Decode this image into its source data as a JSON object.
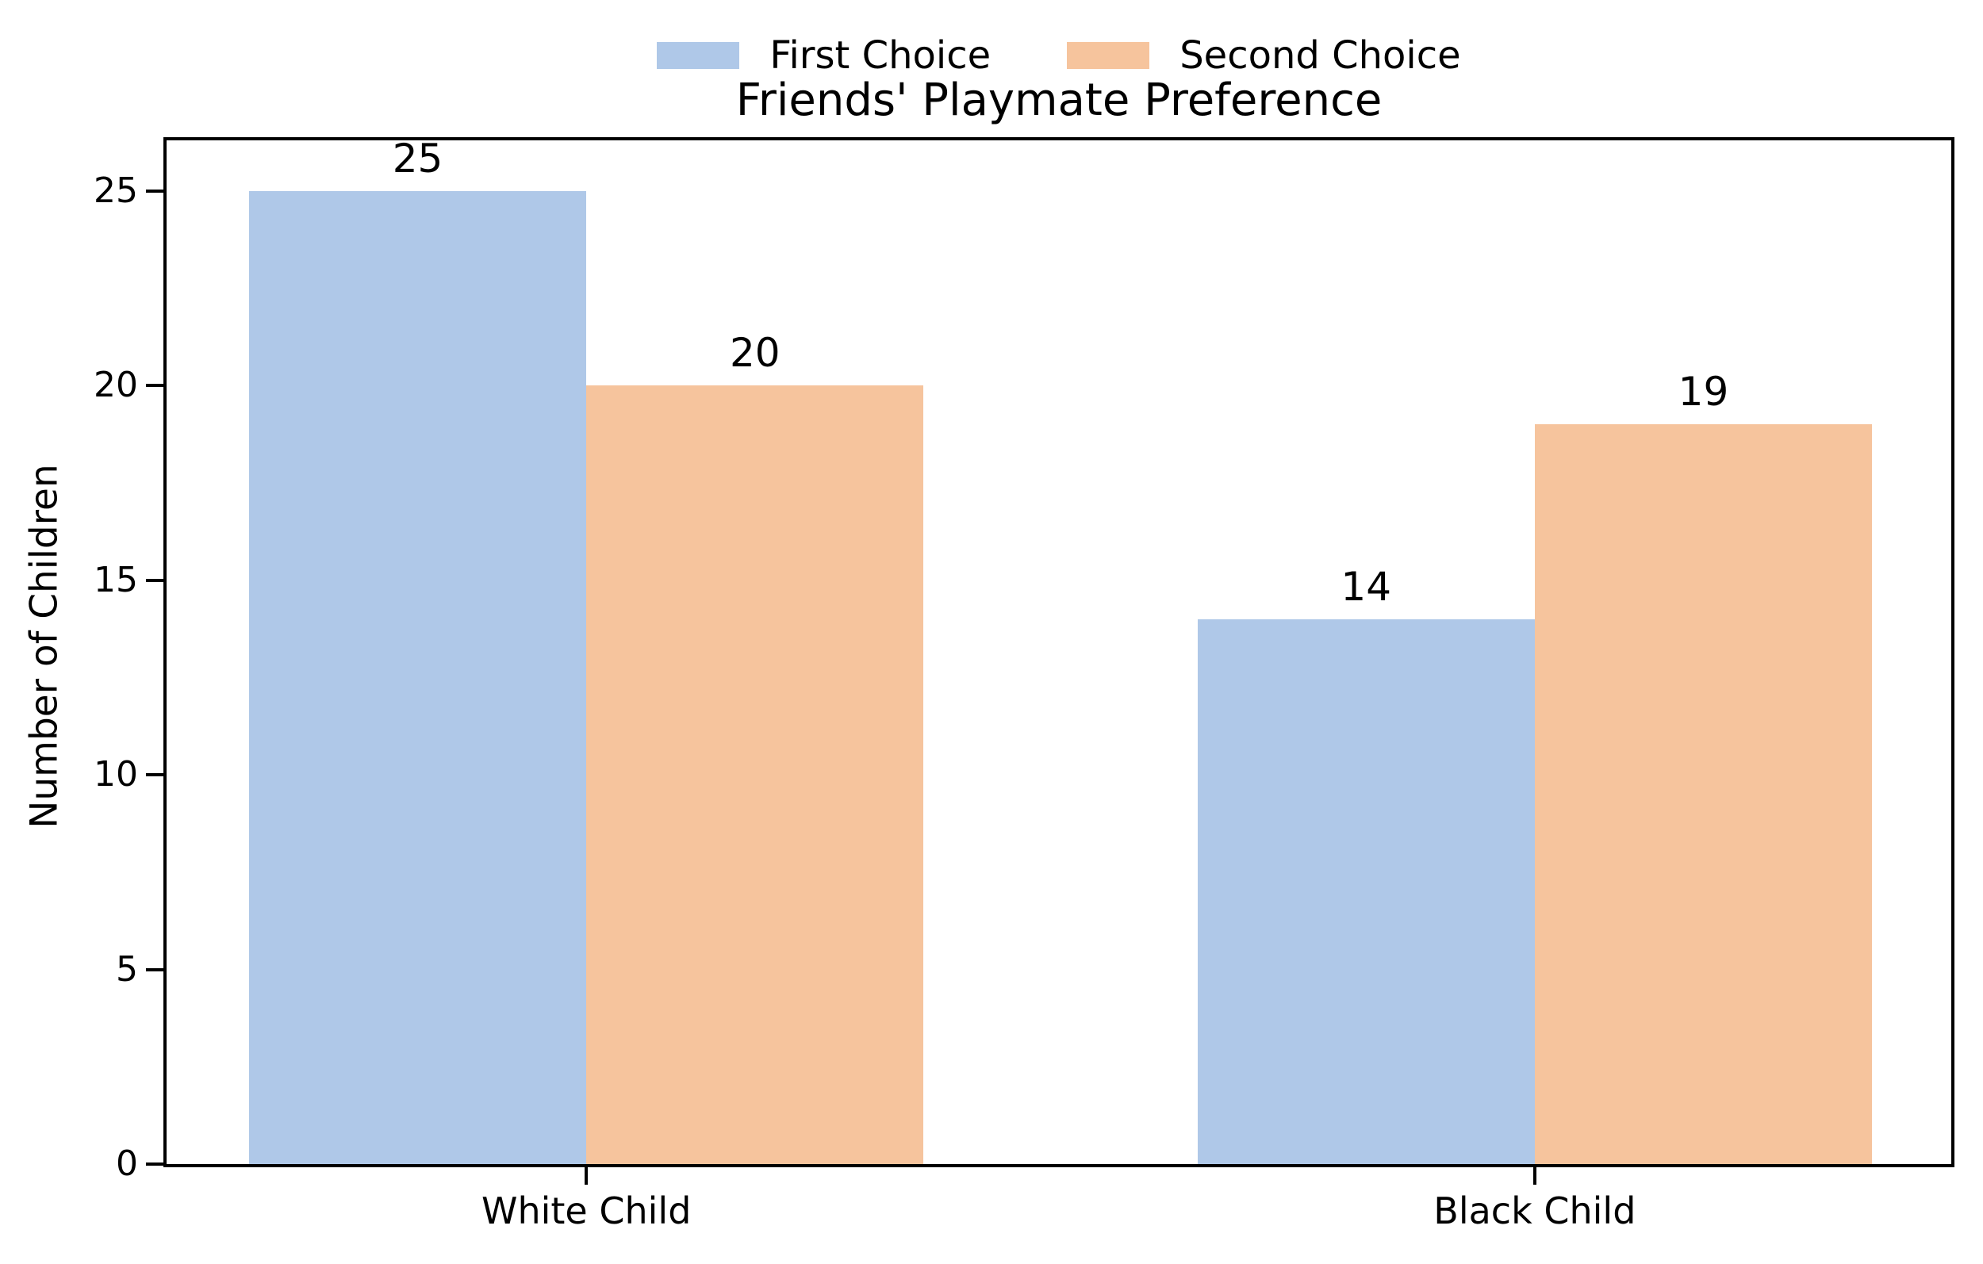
{
  "chart_data": {
    "type": "bar",
    "title": "Friends' Playmate Preference",
    "xlabel": "",
    "ylabel": "Number of Children",
    "categories": [
      "White Child",
      "Black Child"
    ],
    "series": [
      {
        "name": "First Choice",
        "color": "#AFC8E8",
        "values": [
          25,
          14
        ]
      },
      {
        "name": "Second Choice",
        "color": "#F6C49D",
        "values": [
          20,
          19
        ]
      }
    ],
    "yticks": [
      0,
      5,
      10,
      15,
      20,
      25
    ],
    "ylim": [
      0,
      26.3
    ],
    "grid": false,
    "legend_position": "top-center",
    "bar_value_labels_shown": true,
    "axis_color": "#000000",
    "text_color": "#000000",
    "background_color": "#ffffff"
  }
}
